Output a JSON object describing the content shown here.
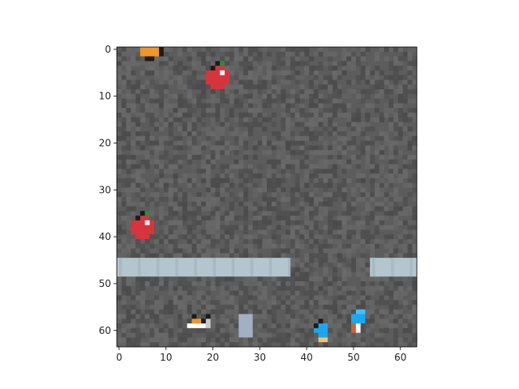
{
  "image_extent": {
    "x": [
      -0.5,
      63.5
    ],
    "y": [
      63.5,
      -0.5
    ]
  },
  "axes": {
    "x_ticks": [
      0,
      10,
      20,
      30,
      40,
      50,
      60
    ],
    "y_ticks": [
      0,
      10,
      20,
      30,
      40,
      50,
      60
    ]
  },
  "colors": {
    "floor": "#5c5c5c",
    "floor_light": "#6d6d6d",
    "floor_dark": "#474747",
    "water_strip": "#b4c6cd",
    "apple_red": "#d8343e",
    "apple_stem": "#2f8a3a",
    "orange": "#f0962a",
    "blue_character": "#1da6f0",
    "stone_block": "#a3b0c2",
    "dark": "#1b1b1b"
  },
  "scene": {
    "strips": [
      {
        "name": "water-strip-left",
        "x": [
          -0.5,
          36.5
        ],
        "y": [
          44.5,
          48.5
        ]
      },
      {
        "name": "water-strip-right",
        "x": [
          53.5,
          63.5
        ],
        "y": [
          44.5,
          48.5
        ]
      }
    ],
    "sprites": [
      {
        "name": "orange-item-icon",
        "kind": "orange",
        "col": 7,
        "row": 1
      },
      {
        "name": "apple-top-icon",
        "kind": "apple",
        "col": 21,
        "row": 6
      },
      {
        "name": "apple-left-icon",
        "kind": "apple",
        "col": 5,
        "row": 38
      },
      {
        "name": "creature-bottom-left-icon",
        "kind": "creature",
        "col": 17,
        "row": 59
      },
      {
        "name": "stone-block-icon",
        "kind": "block",
        "col": 26,
        "row": 57
      },
      {
        "name": "blue-character-icon",
        "kind": "blue",
        "col": 43,
        "row": 60
      },
      {
        "name": "blue-character-right-icon",
        "kind": "blue2",
        "col": 51,
        "row": 58
      }
    ]
  }
}
